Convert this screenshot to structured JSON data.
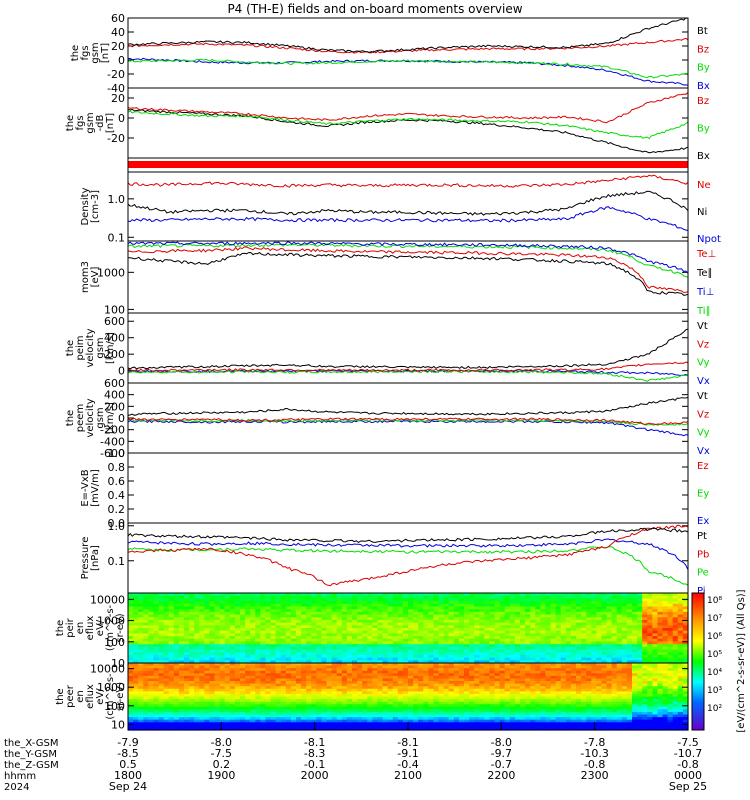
{
  "title": "P4 (TH-E) fields and on-board moments overview",
  "time_axis": {
    "row_labels": [
      "the_X-GSM",
      "the_Y-GSM",
      "the_Z-GSM",
      "hhmm",
      "2024"
    ],
    "ticks": [
      {
        "x": "-7.9",
        "y": "-8.5",
        "z": "0.5",
        "hhmm": "1800",
        "date": "Sep 24"
      },
      {
        "x": "-8.0",
        "y": "-7.5",
        "z": "0.2",
        "hhmm": "1900",
        "date": ""
      },
      {
        "x": "-8.1",
        "y": "-8.3",
        "z": "-0.1",
        "hhmm": "2000",
        "date": ""
      },
      {
        "x": "-8.1",
        "y": "-9.1",
        "z": "-0.4",
        "hhmm": "2100",
        "date": ""
      },
      {
        "x": "-8.0",
        "y": "-9.7",
        "z": "-0.7",
        "hhmm": "2200",
        "date": ""
      },
      {
        "x": "-7.8",
        "y": "-10.3",
        "z": "-0.8",
        "hhmm": "2300",
        "date": ""
      },
      {
        "x": "-7.5",
        "y": "-10.7",
        "z": "-0.8",
        "hhmm": "0000",
        "date": "Sep 25"
      }
    ]
  },
  "colors": {
    "black": "#000000",
    "red": "#dd0000",
    "green": "#00dd00",
    "blue": "#0000dd"
  },
  "chart_data": [
    {
      "type": "line",
      "ylabel": "the\nfgs\ngsm\n[nT]",
      "ylim": [
        -40,
        60
      ],
      "yticks": [
        "60",
        "40",
        "20",
        "0",
        "-20",
        "-40"
      ],
      "series": [
        {
          "name": "Bt",
          "color": "black",
          "values": [
            22,
            24,
            26,
            25,
            20,
            14,
            12,
            15,
            18,
            20,
            19,
            18,
            24,
            45,
            60
          ]
        },
        {
          "name": "Bz",
          "color": "red",
          "values": [
            20,
            22,
            23,
            21,
            17,
            12,
            11,
            13,
            15,
            16,
            16,
            17,
            20,
            25,
            30
          ]
        },
        {
          "name": "By",
          "color": "green",
          "values": [
            -2,
            -1,
            0,
            -3,
            -5,
            -4,
            -2,
            -1,
            -2,
            -3,
            -4,
            -6,
            -10,
            -25,
            -20
          ]
        },
        {
          "name": "Bx",
          "color": "blue",
          "values": [
            2,
            0,
            -3,
            -4,
            -4,
            -2,
            -1,
            -1,
            -2,
            -3,
            -4,
            -8,
            -15,
            -30,
            -35
          ]
        }
      ]
    },
    {
      "type": "line",
      "ylabel": "the\nfgs\ngsm\n-dB\n[nT]",
      "ylim": [
        -40,
        30
      ],
      "yticks": [
        "20",
        "0",
        "-20"
      ],
      "series": [
        {
          "name": "Bz",
          "color": "red",
          "values": [
            10,
            8,
            6,
            4,
            0,
            -2,
            2,
            4,
            2,
            1,
            0,
            1,
            -4,
            15,
            25
          ]
        },
        {
          "name": "By",
          "color": "green",
          "values": [
            6,
            4,
            2,
            2,
            -2,
            -6,
            -3,
            -1,
            -2,
            -3,
            -4,
            -8,
            -15,
            -20,
            -5
          ]
        },
        {
          "name": "Bx",
          "color": "black",
          "values": [
            8,
            6,
            4,
            2,
            -4,
            -8,
            -4,
            -2,
            -3,
            -6,
            -10,
            -15,
            -25,
            -35,
            -30
          ]
        }
      ]
    },
    {
      "type": "bar",
      "ylabel": "",
      "values": []
    },
    {
      "type": "line",
      "ylabel": "Density\n[cm-3]",
      "ylim": [
        0.08,
        5
      ],
      "yticks": [
        "1.0",
        "0.1"
      ],
      "series": [
        {
          "name": "Ne",
          "color": "red",
          "values": [
            2.5,
            2.3,
            2.6,
            2.4,
            2.2,
            2.3,
            2.2,
            2.3,
            2.3,
            2.2,
            2.2,
            2.4,
            3.0,
            4.0,
            2.5
          ]
        },
        {
          "name": "Ni",
          "color": "black",
          "values": [
            0.7,
            0.45,
            0.5,
            0.5,
            0.4,
            0.5,
            0.45,
            0.45,
            0.42,
            0.4,
            0.45,
            0.55,
            1.2,
            1.5,
            0.5
          ]
        },
        {
          "name": "Npot",
          "color": "blue",
          "values": [
            0.28,
            0.28,
            0.3,
            0.3,
            0.28,
            0.28,
            0.28,
            0.28,
            0.28,
            0.27,
            0.28,
            0.3,
            0.6,
            0.3,
            0.15
          ]
        }
      ]
    },
    {
      "type": "line",
      "ylabel": "mom3\n[eV]",
      "ylim": [
        80,
        7000
      ],
      "yticks": [
        "1000",
        "100"
      ],
      "series": [
        {
          "name": "Te⊥",
          "color": "red",
          "values": [
            3500,
            3800,
            3900,
            4500,
            4000,
            3800,
            3600,
            3500,
            3400,
            3300,
            3100,
            2900,
            2500,
            400,
            300
          ]
        },
        {
          "name": "Te∥",
          "color": "black",
          "values": [
            2500,
            2000,
            1700,
            3200,
            3000,
            2800,
            2700,
            2600,
            2500,
            2400,
            2200,
            2000,
            1700,
            300,
            250
          ]
        },
        {
          "name": "Ti⊥",
          "color": "blue",
          "values": [
            6000,
            6000,
            6000,
            6100,
            6200,
            6000,
            5800,
            5700,
            5600,
            5500,
            5300,
            5000,
            4500,
            2000,
            1000
          ]
        },
        {
          "name": "Ti∥",
          "color": "green",
          "values": [
            5000,
            5200,
            5200,
            5400,
            5500,
            5400,
            5200,
            5100,
            5000,
            4900,
            4800,
            4500,
            4000,
            1500,
            800
          ]
        }
      ]
    },
    {
      "type": "line",
      "ylabel": "the\npeim\nvelocity\ngsm\n[km/s]",
      "ylim": [
        -150,
        700
      ],
      "yticks": [
        "600",
        "400",
        "200",
        "0"
      ],
      "series": [
        {
          "name": "Vt",
          "color": "black",
          "values": [
            30,
            40,
            50,
            60,
            70,
            50,
            50,
            40,
            40,
            40,
            50,
            60,
            80,
            200,
            500
          ]
        },
        {
          "name": "Vz",
          "color": "red",
          "values": [
            10,
            5,
            10,
            10,
            10,
            5,
            5,
            5,
            5,
            5,
            10,
            10,
            20,
            80,
            100
          ]
        },
        {
          "name": "Vy",
          "color": "green",
          "values": [
            -20,
            -15,
            -20,
            -10,
            -20,
            -15,
            -15,
            -10,
            -10,
            -15,
            -15,
            -20,
            -40,
            -120,
            -60
          ]
        },
        {
          "name": "Vx",
          "color": "blue",
          "values": [
            -5,
            -5,
            -10,
            -5,
            -5,
            -5,
            -5,
            -5,
            -5,
            -5,
            -5,
            -10,
            -20,
            -30,
            -50
          ]
        }
      ]
    },
    {
      "type": "line",
      "ylabel": "the\npeem\nvelocity\ngsm\n[km/s]",
      "ylim": [
        -600,
        600
      ],
      "yticks": [
        "600",
        "400",
        "200",
        "0",
        "-200",
        "-400",
        "-600"
      ],
      "series": [
        {
          "name": "Vt",
          "color": "black",
          "values": [
            60,
            80,
            90,
            100,
            150,
            100,
            80,
            80,
            70,
            70,
            80,
            90,
            120,
            250,
            350
          ]
        },
        {
          "name": "Vz",
          "color": "red",
          "values": [
            -20,
            -30,
            -20,
            -40,
            -30,
            -20,
            -20,
            -20,
            -20,
            -20,
            -20,
            -30,
            -40,
            -100,
            -80
          ]
        },
        {
          "name": "Vy",
          "color": "green",
          "values": [
            -40,
            -40,
            -50,
            -40,
            -50,
            -40,
            -40,
            -40,
            -40,
            -40,
            -40,
            -50,
            -60,
            -120,
            -100
          ]
        },
        {
          "name": "Vx",
          "color": "blue",
          "values": [
            -60,
            -60,
            -70,
            -60,
            -70,
            -60,
            -60,
            -60,
            -60,
            -60,
            -60,
            -70,
            -80,
            -200,
            -300
          ]
        }
      ]
    },
    {
      "type": "line",
      "ylabel": "E=-VxB\n[mV/m]",
      "ylim": [
        0,
        1
      ],
      "yticks": [
        "1.0",
        "0.8",
        "0.6",
        "0.4",
        "0.2",
        "0.0"
      ],
      "series": [
        {
          "name": "Ez",
          "color": "red",
          "values": []
        },
        {
          "name": "Ey",
          "color": "green",
          "values": []
        },
        {
          "name": "Ex",
          "color": "blue",
          "values": []
        }
      ]
    },
    {
      "type": "line",
      "ylabel": "Pressure\n[nPa]",
      "ylim": [
        0.012,
        1.2
      ],
      "yticks": [
        "1.0",
        "0.1"
      ],
      "series": [
        {
          "name": "Pt",
          "color": "black",
          "values": [
            0.55,
            0.5,
            0.48,
            0.45,
            0.4,
            0.38,
            0.36,
            0.38,
            0.4,
            0.42,
            0.45,
            0.5,
            0.7,
            0.8,
            0.7
          ]
        },
        {
          "name": "Pb",
          "color": "red",
          "values": [
            0.18,
            0.2,
            0.22,
            0.15,
            0.06,
            0.02,
            0.03,
            0.05,
            0.08,
            0.1,
            0.12,
            0.15,
            0.25,
            0.8,
            1.0
          ]
        },
        {
          "name": "Pe",
          "color": "green",
          "values": [
            0.22,
            0.2,
            0.21,
            0.22,
            0.2,
            0.19,
            0.19,
            0.18,
            0.18,
            0.18,
            0.18,
            0.2,
            0.25,
            0.05,
            0.02
          ]
        },
        {
          "name": "Pi",
          "color": "blue",
          "values": [
            0.35,
            0.32,
            0.3,
            0.32,
            0.3,
            0.28,
            0.28,
            0.27,
            0.27,
            0.27,
            0.28,
            0.3,
            0.4,
            0.3,
            0.06
          ]
        }
      ]
    },
    {
      "type": "heatmap",
      "ylabel": "the\npeir\nen\neflux\neV/\n(cm^2-s-\nsr-eV)",
      "ylim": [
        10,
        20000
      ],
      "yticks": [
        "10000",
        "1000",
        "100",
        "10"
      ]
    },
    {
      "type": "heatmap",
      "ylabel": "the\npeer\nen\neflux\neV/\n(cm^2-s-\nsr-eV)",
      "ylim": [
        5,
        20000
      ],
      "yticks": [
        "10000",
        "1000",
        "100",
        "10"
      ]
    }
  ],
  "colorbar": {
    "label": "[eV/(cm^2-s-sr-eV)] (All Qs)]",
    "ticks": [
      "10⁸",
      "10⁷",
      "10⁶",
      "10⁵",
      "10⁴",
      "10³",
      "10²"
    ]
  }
}
